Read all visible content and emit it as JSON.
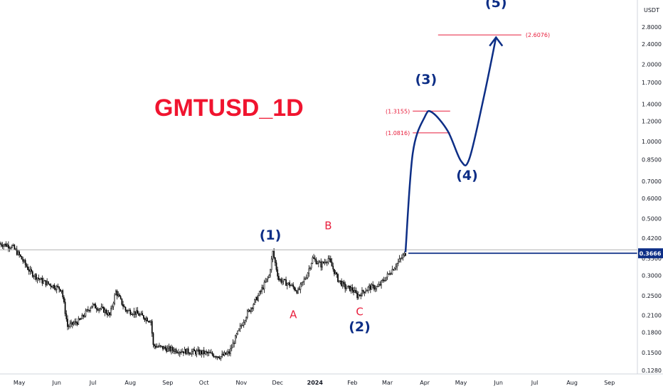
{
  "chart_data": {
    "type": "candlestick",
    "title": "GMTUSD_1D",
    "currency_label": "USDT",
    "scale": "log",
    "ylim": [
      0.128,
      3.1
    ],
    "y_ticks": [
      "2.8000",
      "2.4000",
      "2.0000",
      "1.7000",
      "1.4000",
      "1.2000",
      "1.0000",
      "0.8500",
      "0.7000",
      "0.6000",
      "0.5000",
      "0.4200",
      "0.3500",
      "0.3000",
      "0.2500",
      "0.2100",
      "0.1800",
      "0.1500",
      "0.1280"
    ],
    "x_ticks": [
      "May",
      "Jun",
      "Jul",
      "Aug",
      "Sep",
      "Oct",
      "Nov",
      "Dec",
      "2024",
      "Feb",
      "Mar",
      "Apr",
      "May",
      "Jun",
      "Jul",
      "Aug",
      "Sep"
    ],
    "x_start": "2023-04-15",
    "last_date": "2024-03-16",
    "current_price": "0.3666",
    "price_path": [
      [
        "2023-04-15",
        0.4
      ],
      [
        "2023-04-25",
        0.39
      ],
      [
        "2023-05-01",
        0.36
      ],
      [
        "2023-05-10",
        0.31
      ],
      [
        "2023-05-20",
        0.285
      ],
      [
        "2023-05-28",
        0.275
      ],
      [
        "2023-06-05",
        0.265
      ],
      [
        "2023-06-10",
        0.19
      ],
      [
        "2023-06-20",
        0.2
      ],
      [
        "2023-06-30",
        0.23
      ],
      [
        "2023-07-10",
        0.22
      ],
      [
        "2023-07-15",
        0.21
      ],
      [
        "2023-07-20",
        0.26
      ],
      [
        "2023-07-28",
        0.22
      ],
      [
        "2023-08-05",
        0.215
      ],
      [
        "2023-08-18",
        0.2
      ],
      [
        "2023-08-20",
        0.16
      ],
      [
        "2023-09-01",
        0.155
      ],
      [
        "2023-09-15",
        0.152
      ],
      [
        "2023-10-01",
        0.15
      ],
      [
        "2023-10-15",
        0.145
      ],
      [
        "2023-10-22",
        0.15
      ],
      [
        "2023-10-28",
        0.175
      ],
      [
        "2023-11-05",
        0.21
      ],
      [
        "2023-11-15",
        0.25
      ],
      [
        "2023-11-24",
        0.3
      ],
      [
        "2023-11-27",
        0.37
      ],
      [
        "2023-12-02",
        0.29
      ],
      [
        "2023-12-12",
        0.275
      ],
      [
        "2023-12-18",
        0.26
      ],
      [
        "2023-12-25",
        0.3
      ],
      [
        "2023-12-30",
        0.35
      ],
      [
        "2024-01-06",
        0.33
      ],
      [
        "2024-01-12",
        0.35
      ],
      [
        "2024-01-20",
        0.29
      ],
      [
        "2024-01-26",
        0.27
      ],
      [
        "2024-02-01",
        0.265
      ],
      [
        "2024-02-05",
        0.25
      ],
      [
        "2024-02-15",
        0.27
      ],
      [
        "2024-02-22",
        0.27
      ],
      [
        "2024-03-01",
        0.3
      ],
      [
        "2024-03-08",
        0.33
      ],
      [
        "2024-03-16",
        0.3666
      ]
    ],
    "projection_path": [
      [
        "2024-03-16",
        0.37
      ],
      [
        "2024-03-22",
        0.9
      ],
      [
        "2024-04-01",
        1.25
      ],
      [
        "2024-04-07",
        1.3
      ],
      [
        "2024-04-20",
        1.1
      ],
      [
        "2024-05-01",
        0.84
      ],
      [
        "2024-05-08",
        0.86
      ],
      [
        "2024-05-20",
        1.5
      ],
      [
        "2024-05-30",
        2.55
      ]
    ],
    "horizontal_lines": [
      {
        "price": 0.3666,
        "label": "0.3666",
        "style": "current"
      },
      {
        "price": 0.378,
        "style": "thin-gray"
      }
    ],
    "fib_levels": [
      {
        "label": "(2.6076)",
        "price": 2.6076,
        "from": "2024-04-12",
        "to": "2024-06-20"
      },
      {
        "label": "(1.3155)",
        "price": 1.3155,
        "from": "2024-03-22",
        "to": "2024-04-22"
      },
      {
        "label": "(1.0816)",
        "price": 1.0816,
        "from": "2024-03-22",
        "to": "2024-04-22"
      }
    ],
    "wave_labels": [
      {
        "text": "(1)",
        "date": "2023-11-25",
        "price": 0.415,
        "kind": "main"
      },
      {
        "text": "B",
        "date": "2024-01-12",
        "price": 0.455,
        "kind": "sub"
      },
      {
        "text": "A",
        "date": "2023-12-14",
        "price": 0.205,
        "kind": "sub"
      },
      {
        "text": "C",
        "date": "2024-02-07",
        "price": 0.21,
        "kind": "sub"
      },
      {
        "text": "(2)",
        "date": "2024-02-07",
        "price": 0.182,
        "kind": "main"
      },
      {
        "text": "(3)",
        "date": "2024-04-02",
        "price": 1.68,
        "kind": "main"
      },
      {
        "text": "(4)",
        "date": "2024-05-06",
        "price": 0.71,
        "kind": "main"
      },
      {
        "text": "(5)",
        "date": "2024-05-30",
        "price": 3.35,
        "kind": "main"
      }
    ]
  }
}
